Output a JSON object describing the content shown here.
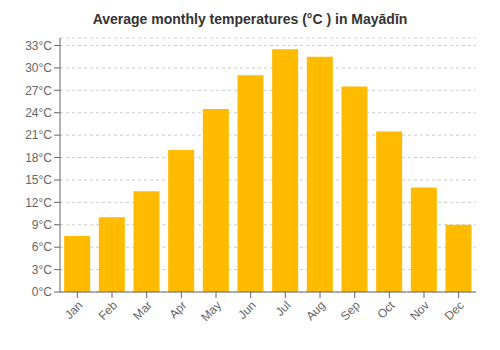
{
  "chart_data": {
    "type": "bar",
    "title": "Average monthly temperatures (°C ) in Mayādīn",
    "categories": [
      "Jan",
      "Feb",
      "Mar",
      "Apr",
      "May",
      "Jun",
      "Jul",
      "Aug",
      "Sep",
      "Oct",
      "Nov",
      "Dec"
    ],
    "values": [
      7.5,
      10.0,
      13.5,
      19.0,
      24.5,
      29.0,
      32.5,
      31.5,
      27.5,
      21.5,
      14.0,
      9.0
    ],
    "color": "#FFBB00",
    "ylim": [
      0,
      34
    ],
    "yticks": [
      {
        "value": 0,
        "label": "0°C"
      },
      {
        "value": 3,
        "label": "3°C"
      },
      {
        "value": 6,
        "label": "6°C"
      },
      {
        "value": 9,
        "label": "9°C"
      },
      {
        "value": 12,
        "label": "12°C"
      },
      {
        "value": 15,
        "label": "15°C"
      },
      {
        "value": 18,
        "label": "18°C"
      },
      {
        "value": 21,
        "label": "21°C"
      },
      {
        "value": 24,
        "label": "24°C"
      },
      {
        "value": 27,
        "label": "27°C"
      },
      {
        "value": 30,
        "label": "30°C"
      },
      {
        "value": 33,
        "label": "33°C"
      }
    ],
    "grid": true
  }
}
